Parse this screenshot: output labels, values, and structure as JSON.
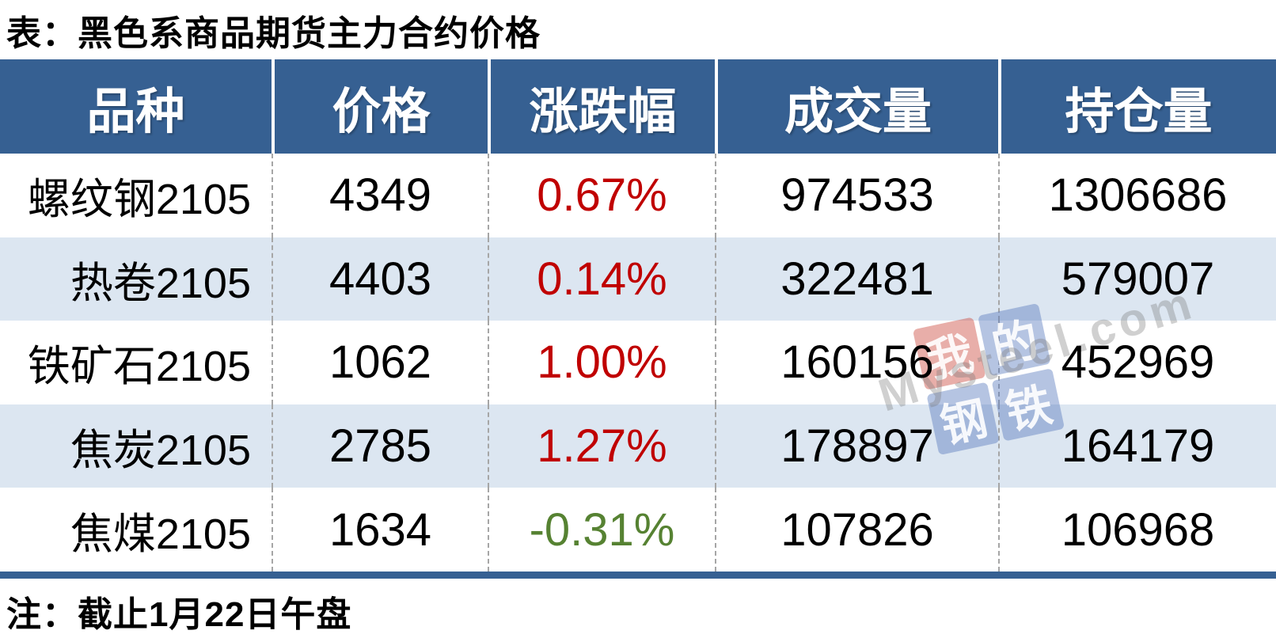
{
  "title": "表：黑色系商品期货主力合约价格",
  "note": "注：截止1月22日午盘",
  "chart_data": {
    "type": "table",
    "columns": [
      "品种",
      "价格",
      "涨跌幅",
      "成交量",
      "持仓量"
    ],
    "rows": [
      {
        "name": "螺纹钢2105",
        "price": "4349",
        "change": "0.67%",
        "change_color": "#c00000",
        "volume": "974533",
        "open_interest": "1306686"
      },
      {
        "name": "热卷2105",
        "price": "4403",
        "change": "0.14%",
        "change_color": "#c00000",
        "volume": "322481",
        "open_interest": "579007"
      },
      {
        "name": "铁矿石2105",
        "price": "1062",
        "change": "1.00%",
        "change_color": "#c00000",
        "volume": "160156",
        "open_interest": "452969"
      },
      {
        "name": "焦炭2105",
        "price": "2785",
        "change": "1.27%",
        "change_color": "#c00000",
        "volume": "178897",
        "open_interest": "164179"
      },
      {
        "name": "焦煤2105",
        "price": "1634",
        "change": "-0.31%",
        "change_color": "#568232",
        "volume": "107826",
        "open_interest": "106968"
      }
    ]
  },
  "watermark": {
    "squares": [
      "我",
      "的",
      "钢",
      "铁"
    ],
    "brand": "Mysteel.com"
  },
  "colors": {
    "header_bg": "#366092",
    "alt_row_bg": "#dce6f1",
    "up_red": "#c00000",
    "down_green": "#568232",
    "bar_blue": "#366092",
    "divider_gray": "#a6a6a6"
  }
}
